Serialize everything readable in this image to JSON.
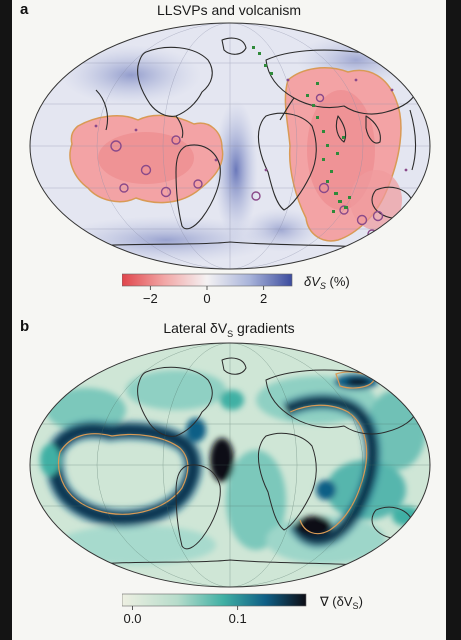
{
  "panels": [
    {
      "letter": "a",
      "title": "LLSVPs and volcanism",
      "colorbar": {
        "tick_labels": [
          "−2",
          "0",
          "2"
        ],
        "tick_values": [
          -2,
          0,
          2
        ],
        "range": [
          -3,
          3
        ],
        "unit_symbol": "δV",
        "unit_subscript": "S",
        "unit_suffix": " (%)",
        "colors": [
          "#e0454b",
          "#f2a7a6",
          "#f4f2f3",
          "#a9b4da",
          "#3c4c9e"
        ]
      }
    },
    {
      "letter": "b",
      "title_prefix": "Lateral δV",
      "title_subscript": "S",
      "title_suffix": " gradients",
      "colorbar": {
        "tick_labels": [
          "0.0",
          "0.1"
        ],
        "tick_values": [
          0.0,
          0.1
        ],
        "range": [
          -0.01,
          0.165
        ],
        "unit_prefix": "∇ (δV",
        "unit_subscript": "S",
        "unit_suffix": ")",
        "colors": [
          "#eef0e2",
          "#b7dccb",
          "#40b0a4",
          "#0f5f86",
          "#0d0d14"
        ]
      }
    }
  ],
  "colors": {
    "background": "#141414",
    "figure_background": "#f6f6f3",
    "coastline": "#2b2b2b",
    "llsvp_contour": "#d99a55",
    "hotspot_marker": "#8a4a8a",
    "volcanic_marker": "#2f8a3a"
  }
}
